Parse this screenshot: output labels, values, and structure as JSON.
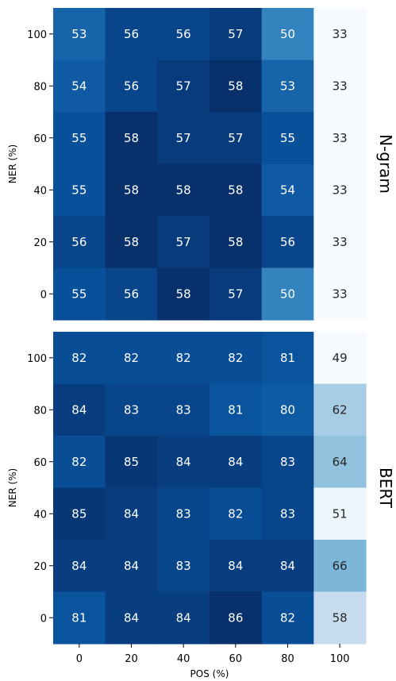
{
  "chart_data": [
    {
      "type": "heatmap",
      "row_label": "N-gram",
      "ylabel": "NER (%)",
      "xlabel": "",
      "x_ticks": [
        "0",
        "20",
        "40",
        "60",
        "80",
        "100"
      ],
      "y_ticks": [
        "100",
        "80",
        "60",
        "40",
        "20",
        "0"
      ],
      "values": [
        [
          53,
          56,
          56,
          57,
          50,
          33
        ],
        [
          54,
          56,
          57,
          58,
          53,
          33
        ],
        [
          55,
          58,
          57,
          57,
          55,
          33
        ],
        [
          55,
          58,
          58,
          58,
          54,
          33
        ],
        [
          56,
          58,
          57,
          58,
          56,
          33
        ],
        [
          55,
          56,
          58,
          57,
          50,
          33
        ]
      ],
      "colormap": "Blues",
      "vmin": 33,
      "vmax": 58
    },
    {
      "type": "heatmap",
      "row_label": "BERT",
      "ylabel": "NER (%)",
      "xlabel": "POS (%)",
      "x_ticks": [
        "0",
        "20",
        "40",
        "60",
        "80",
        "100"
      ],
      "y_ticks": [
        "100",
        "80",
        "60",
        "40",
        "20",
        "0"
      ],
      "values": [
        [
          82,
          82,
          82,
          82,
          81,
          49
        ],
        [
          84,
          83,
          83,
          81,
          80,
          62
        ],
        [
          82,
          85,
          84,
          84,
          83,
          64
        ],
        [
          85,
          84,
          83,
          82,
          83,
          51
        ],
        [
          84,
          84,
          83,
          84,
          84,
          66
        ],
        [
          81,
          84,
          84,
          86,
          82,
          58
        ]
      ],
      "colormap": "Blues",
      "vmin": 49,
      "vmax": 86
    }
  ]
}
